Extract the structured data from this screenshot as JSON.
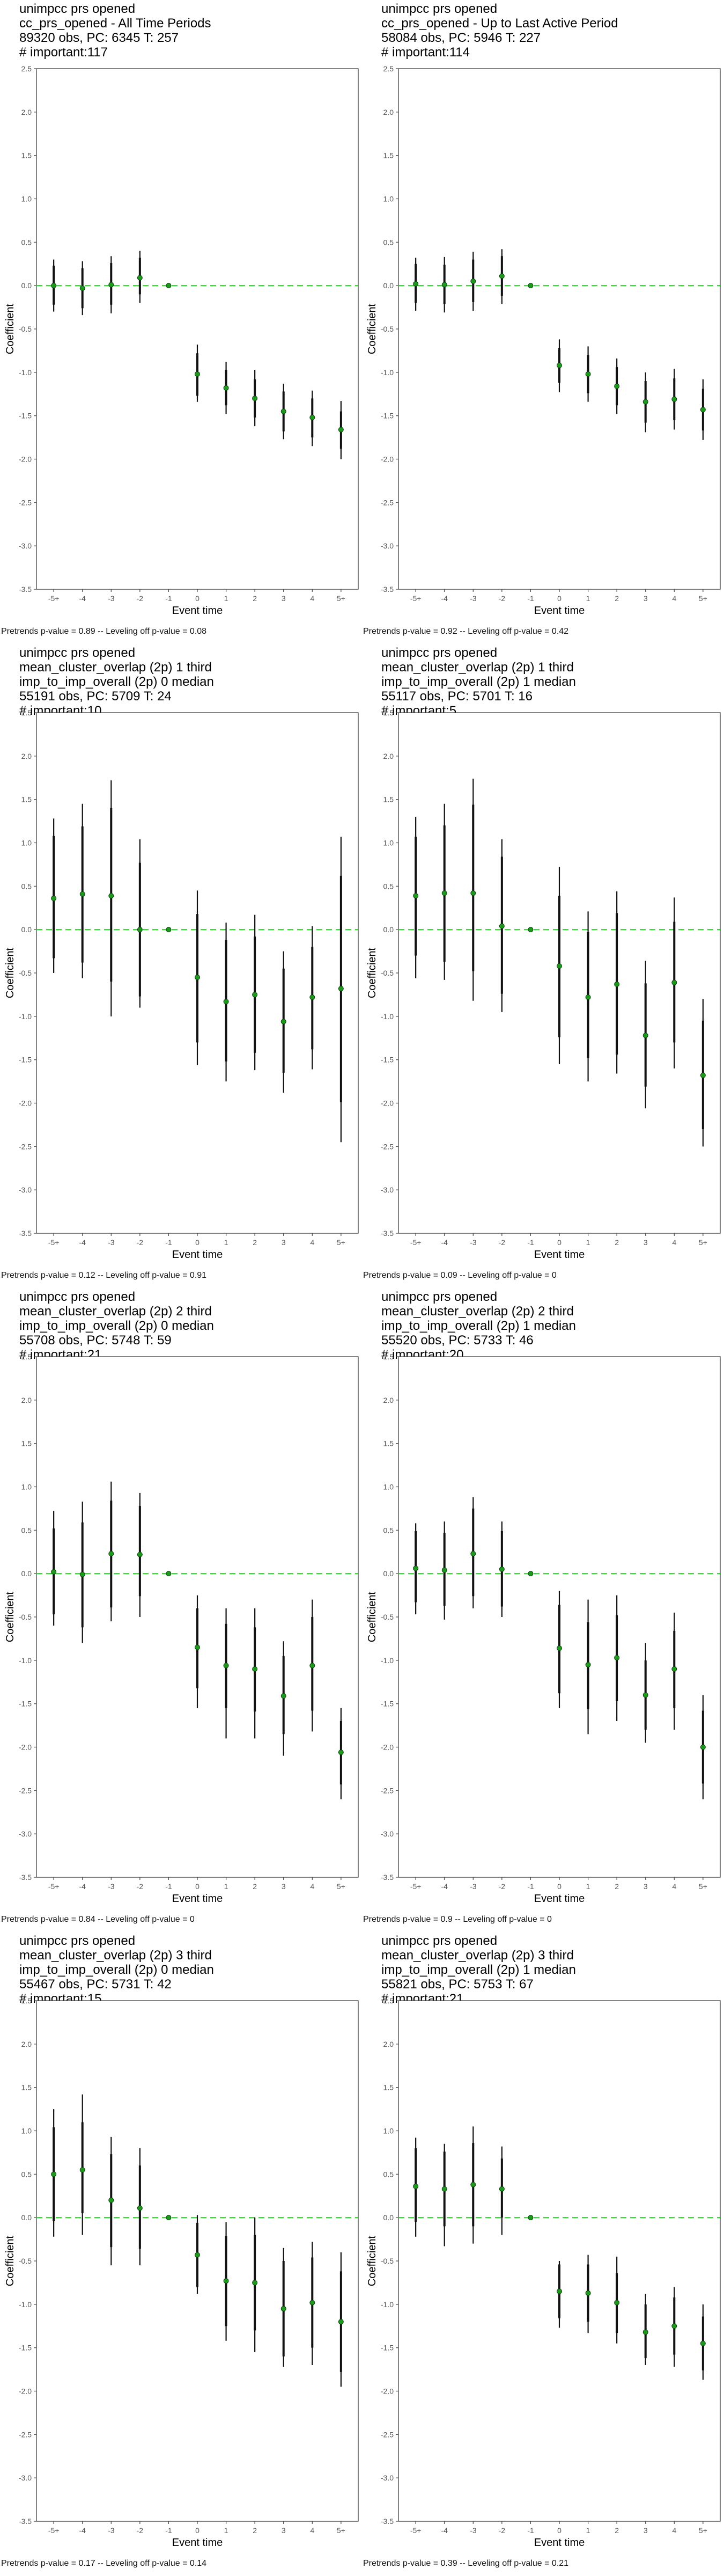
{
  "colors": {
    "zero_line": "#33e033",
    "point": "#1c9b1c",
    "error_bar": "#111111"
  },
  "chart_data": [
    {
      "type": "scatter",
      "title_lines": [
        "unimpcc prs opened",
        "cc_prs_opened - All Time Periods",
        "89320 obs, PC: 6345 T: 257",
        "# important:117"
      ],
      "xlabel": "Event time",
      "ylabel": "Coefficient",
      "categories": [
        "-5+",
        "-4",
        "-3",
        "-2",
        "-1",
        "0",
        "1",
        "2",
        "3",
        "4",
        "5+"
      ],
      "y_ticks": [
        "2.5",
        "2.0",
        "1.5",
        "1.0",
        "0.5",
        "0.0",
        "-0.5",
        "-1.0",
        "-1.5",
        "-2.0",
        "-2.5",
        "-3.0",
        "-3.5"
      ],
      "ylim": [
        -3.5,
        2.5
      ],
      "estimates": [
        0.0,
        -0.03,
        0.01,
        0.09,
        0.0,
        -1.02,
        -1.18,
        -1.3,
        -1.45,
        -1.52,
        -1.66
      ],
      "ci90": [
        [
          -0.22,
          0.23
        ],
        [
          -0.26,
          0.2
        ],
        [
          -0.22,
          0.26
        ],
        [
          -0.1,
          0.32
        ],
        null,
        [
          -1.27,
          -0.78
        ],
        [
          -1.38,
          -0.97
        ],
        [
          -1.52,
          -1.08
        ],
        [
          -1.68,
          -1.22
        ],
        [
          -1.75,
          -1.3
        ],
        [
          -1.88,
          -1.45
        ]
      ],
      "ci95": [
        [
          -0.3,
          0.3
        ],
        [
          -0.34,
          0.28
        ],
        [
          -0.32,
          0.34
        ],
        [
          -0.2,
          0.4
        ],
        null,
        [
          -1.34,
          -0.68
        ],
        [
          -1.48,
          -0.88
        ],
        [
          -1.62,
          -0.97
        ],
        [
          -1.77,
          -1.13
        ],
        [
          -1.85,
          -1.21
        ],
        [
          -2.0,
          -1.33
        ]
      ],
      "grid": false,
      "caption": "Pretrends p-value = 0.89 -- Leveling off p-value = 0.08"
    },
    {
      "type": "scatter",
      "title_lines": [
        "unimpcc prs opened",
        "cc_prs_opened - Up to Last Active Period",
        "58084 obs, PC: 5946 T: 227",
        "# important:114"
      ],
      "xlabel": "Event time",
      "ylabel": "Coefficient",
      "categories": [
        "-5+",
        "-4",
        "-3",
        "-2",
        "-1",
        "0",
        "1",
        "2",
        "3",
        "4",
        "5+"
      ],
      "y_ticks": [
        "2.5",
        "2.0",
        "1.5",
        "1.0",
        "0.5",
        "0.0",
        "-0.5",
        "-1.0",
        "-1.5",
        "-2.0",
        "-2.5",
        "-3.0",
        "-3.5"
      ],
      "ylim": [
        -3.5,
        2.5
      ],
      "estimates": [
        0.02,
        0.01,
        0.05,
        0.11,
        0.0,
        -0.92,
        -1.02,
        -1.16,
        -1.34,
        -1.31,
        -1.43
      ],
      "ci90": [
        [
          -0.2,
          0.25
        ],
        [
          -0.21,
          0.24
        ],
        [
          -0.19,
          0.3
        ],
        [
          -0.12,
          0.34
        ],
        null,
        [
          -1.12,
          -0.72
        ],
        [
          -1.24,
          -0.8
        ],
        [
          -1.38,
          -0.94
        ],
        [
          -1.58,
          -1.1
        ],
        [
          -1.55,
          -1.07
        ],
        [
          -1.67,
          -1.19
        ]
      ],
      "ci95": [
        [
          -0.29,
          0.32
        ],
        [
          -0.31,
          0.33
        ],
        [
          -0.29,
          0.39
        ],
        [
          -0.21,
          0.42
        ],
        null,
        [
          -1.23,
          -0.62
        ],
        [
          -1.34,
          -0.7
        ],
        [
          -1.48,
          -0.84
        ],
        [
          -1.69,
          -1.0
        ],
        [
          -1.66,
          -0.96
        ],
        [
          -1.78,
          -1.08
        ]
      ],
      "grid": false,
      "caption": "Pretrends p-value = 0.92 -- Leveling off p-value = 0.42"
    },
    {
      "type": "scatter",
      "title_lines": [
        "unimpcc prs opened",
        "mean_cluster_overlap (2p) 1 third",
        "imp_to_imp_overall (2p) 0 median",
        "55191 obs, PC: 5709 T: 24",
        "# important:10"
      ],
      "xlabel": "Event time",
      "ylabel": "Coefficient",
      "categories": [
        "-5+",
        "-4",
        "-3",
        "-2",
        "-1",
        "0",
        "1",
        "2",
        "3",
        "4",
        "5+"
      ],
      "y_ticks": [
        "2.5",
        "2.0",
        "1.5",
        "1.0",
        "0.5",
        "0.0",
        "-0.5",
        "-1.0",
        "-1.5",
        "-2.0",
        "-2.5",
        "-3.0",
        "-3.5"
      ],
      "ylim": [
        -3.5,
        2.5
      ],
      "estimates": [
        0.36,
        0.41,
        0.39,
        0.0,
        0.0,
        -0.55,
        -0.83,
        -0.75,
        -1.06,
        -0.78,
        -0.68
      ],
      "ci90": [
        [
          -0.33,
          1.08
        ],
        [
          -0.38,
          1.19
        ],
        [
          -0.6,
          1.4
        ],
        [
          -0.77,
          0.77
        ],
        null,
        [
          -1.3,
          0.18
        ],
        [
          -1.52,
          -0.12
        ],
        [
          -1.42,
          -0.08
        ],
        [
          -1.65,
          -0.45
        ],
        [
          -1.38,
          -0.2
        ],
        [
          -1.99,
          0.62
        ]
      ],
      "ci95": [
        [
          -0.5,
          1.28
        ],
        [
          -0.56,
          1.45
        ],
        [
          -1.0,
          1.72
        ],
        [
          -0.9,
          1.04
        ],
        null,
        [
          -1.56,
          0.45
        ],
        [
          -1.75,
          0.08
        ],
        [
          -1.62,
          0.17
        ],
        [
          -1.88,
          -0.25
        ],
        [
          -1.61,
          0.04
        ],
        [
          -2.45,
          1.07
        ]
      ],
      "grid": false,
      "caption": "Pretrends p-value = 0.12 -- Leveling off p-value = 0.91"
    },
    {
      "type": "scatter",
      "title_lines": [
        "unimpcc prs opened",
        "mean_cluster_overlap (2p) 1 third",
        "imp_to_imp_overall (2p) 1 median",
        "55117 obs, PC: 5701 T: 16",
        "# important:5"
      ],
      "xlabel": "Event time",
      "ylabel": "Coefficient",
      "categories": [
        "-5+",
        "-4",
        "-3",
        "-2",
        "-1",
        "0",
        "1",
        "2",
        "3",
        "4",
        "5+"
      ],
      "y_ticks": [
        "2.5",
        "2.0",
        "1.5",
        "1.0",
        "0.5",
        "0.0",
        "-0.5",
        "-1.0",
        "-1.5",
        "-2.0",
        "-2.5",
        "-3.0",
        "-3.5"
      ],
      "ylim": [
        -3.5,
        2.5
      ],
      "estimates": [
        0.39,
        0.42,
        0.42,
        0.04,
        0.0,
        -0.42,
        -0.78,
        -0.63,
        -1.22,
        -0.61,
        -1.68
      ],
      "ci90": [
        [
          -0.3,
          1.07
        ],
        [
          -0.37,
          1.2
        ],
        [
          -0.48,
          1.44
        ],
        [
          -0.74,
          0.84
        ],
        null,
        [
          -1.24,
          0.39
        ],
        [
          -1.48,
          -0.03
        ],
        [
          -1.44,
          0.19
        ],
        [
          -1.81,
          -0.62
        ],
        [
          -1.3,
          0.09
        ],
        [
          -2.3,
          -1.05
        ]
      ],
      "ci95": [
        [
          -0.56,
          1.3
        ],
        [
          -0.58,
          1.45
        ],
        [
          -0.82,
          1.74
        ],
        [
          -0.95,
          1.04
        ],
        null,
        [
          -1.55,
          0.72
        ],
        [
          -1.75,
          0.21
        ],
        [
          -1.66,
          0.44
        ],
        [
          -2.06,
          -0.36
        ],
        [
          -1.6,
          0.37
        ],
        [
          -2.5,
          -0.8
        ]
      ],
      "grid": false,
      "caption": "Pretrends p-value = 0.09 -- Leveling off p-value = 0"
    },
    {
      "type": "scatter",
      "title_lines": [
        "unimpcc prs opened",
        "mean_cluster_overlap (2p) 2 third",
        "imp_to_imp_overall (2p) 0 median",
        "55708 obs, PC: 5748 T: 59",
        "# important:21"
      ],
      "xlabel": "Event time",
      "ylabel": "Coefficient",
      "categories": [
        "-5+",
        "-4",
        "-3",
        "-2",
        "-1",
        "0",
        "1",
        "2",
        "3",
        "4",
        "5+"
      ],
      "y_ticks": [
        "2.5",
        "2.0",
        "1.5",
        "1.0",
        "0.5",
        "0.0",
        "-0.5",
        "-1.0",
        "-1.5",
        "-2.0",
        "-2.5",
        "-3.0",
        "-3.5"
      ],
      "ylim": [
        -3.5,
        2.5
      ],
      "estimates": [
        0.02,
        -0.01,
        0.23,
        0.22,
        0.0,
        -0.85,
        -1.06,
        -1.1,
        -1.41,
        -1.06,
        -2.06
      ],
      "ci90": [
        [
          -0.47,
          0.52
        ],
        [
          -0.62,
          0.59
        ],
        [
          -0.39,
          0.84
        ],
        [
          -0.26,
          0.78
        ],
        null,
        [
          -1.32,
          -0.4
        ],
        [
          -1.55,
          -0.58
        ],
        [
          -1.59,
          -0.62
        ],
        [
          -1.85,
          -0.95
        ],
        [
          -1.58,
          -0.5
        ],
        [
          -2.43,
          -1.7
        ]
      ],
      "ci95": [
        [
          -0.6,
          0.72
        ],
        [
          -0.8,
          0.83
        ],
        [
          -0.55,
          1.06
        ],
        [
          -0.5,
          0.93
        ],
        null,
        [
          -1.55,
          -0.25
        ],
        [
          -1.9,
          -0.4
        ],
        [
          -1.9,
          -0.4
        ],
        [
          -2.1,
          -0.78
        ],
        [
          -1.82,
          -0.3
        ],
        [
          -2.6,
          -1.55
        ]
      ],
      "grid": false,
      "caption": "Pretrends p-value = 0.84 -- Leveling off p-value = 0"
    },
    {
      "type": "scatter",
      "title_lines": [
        "unimpcc prs opened",
        "mean_cluster_overlap (2p) 2 third",
        "imp_to_imp_overall (2p) 1 median",
        "55520 obs, PC: 5733 T: 46",
        "# important:20"
      ],
      "xlabel": "Event time",
      "ylabel": "Coefficient",
      "categories": [
        "-5+",
        "-4",
        "-3",
        "-2",
        "-1",
        "0",
        "1",
        "2",
        "3",
        "4",
        "5+"
      ],
      "y_ticks": [
        "2.5",
        "2.0",
        "1.5",
        "1.0",
        "0.5",
        "0.0",
        "-0.5",
        "-1.0",
        "-1.5",
        "-2.0",
        "-2.5",
        "-3.0",
        "-3.5"
      ],
      "ylim": [
        -3.5,
        2.5
      ],
      "estimates": [
        0.06,
        0.04,
        0.23,
        0.05,
        0.0,
        -0.86,
        -1.05,
        -0.97,
        -1.4,
        -1.1,
        -2.0
      ],
      "ci90": [
        [
          -0.33,
          0.49
        ],
        [
          -0.37,
          0.47
        ],
        [
          -0.26,
          0.75
        ],
        [
          -0.38,
          0.49
        ],
        null,
        [
          -1.38,
          -0.36
        ],
        [
          -1.56,
          -0.56
        ],
        [
          -1.47,
          -0.48
        ],
        [
          -1.8,
          -1.0
        ],
        [
          -1.55,
          -0.66
        ],
        [
          -2.42,
          -1.58
        ]
      ],
      "ci95": [
        [
          -0.47,
          0.58
        ],
        [
          -0.53,
          0.6
        ],
        [
          -0.4,
          0.88
        ],
        [
          -0.5,
          0.6
        ],
        null,
        [
          -1.55,
          -0.2
        ],
        [
          -1.85,
          -0.3
        ],
        [
          -1.7,
          -0.25
        ],
        [
          -1.95,
          -0.8
        ],
        [
          -1.8,
          -0.45
        ],
        [
          -2.6,
          -1.4
        ]
      ],
      "grid": false,
      "caption": "Pretrends p-value = 0.9 -- Leveling off p-value = 0"
    },
    {
      "type": "scatter",
      "title_lines": [
        "unimpcc prs opened",
        "mean_cluster_overlap (2p) 3 third",
        "imp_to_imp_overall (2p) 0 median",
        "55467 obs, PC: 5731 T: 42",
        "# important:15"
      ],
      "xlabel": "Event time",
      "ylabel": "Coefficient",
      "categories": [
        "-5+",
        "-4",
        "-3",
        "-2",
        "-1",
        "0",
        "1",
        "2",
        "3",
        "4",
        "5+"
      ],
      "y_ticks": [
        "2.5",
        "2.0",
        "1.5",
        "1.0",
        "0.5",
        "0.0",
        "-0.5",
        "-1.0",
        "-1.5",
        "-2.0",
        "-2.5",
        "-3.0",
        "-3.5"
      ],
      "ylim": [
        -3.5,
        2.5
      ],
      "estimates": [
        0.5,
        0.55,
        0.2,
        0.11,
        0.0,
        -0.43,
        -0.73,
        -0.75,
        -1.05,
        -0.98,
        -1.2
      ],
      "ci90": [
        [
          -0.04,
          1.04
        ],
        [
          0.05,
          1.1
        ],
        [
          -0.34,
          0.73
        ],
        [
          -0.36,
          0.6
        ],
        null,
        [
          -0.8,
          -0.06
        ],
        [
          -1.25,
          -0.21
        ],
        [
          -1.3,
          -0.2
        ],
        [
          -1.6,
          -0.5
        ],
        [
          -1.5,
          -0.46
        ],
        [
          -1.78,
          -0.62
        ]
      ],
      "ci95": [
        [
          -0.22,
          1.25
        ],
        [
          -0.2,
          1.42
        ],
        [
          -0.55,
          0.93
        ],
        [
          -0.55,
          0.8
        ],
        null,
        [
          -0.88,
          0.03
        ],
        [
          -1.42,
          -0.05
        ],
        [
          -1.55,
          0.0
        ],
        [
          -1.72,
          -0.35
        ],
        [
          -1.7,
          -0.28
        ],
        [
          -1.95,
          -0.4
        ]
      ],
      "grid": false,
      "caption": "Pretrends p-value = 0.17 -- Leveling off p-value = 0.14"
    },
    {
      "type": "scatter",
      "title_lines": [
        "unimpcc prs opened",
        "mean_cluster_overlap (2p) 3 third",
        "imp_to_imp_overall (2p) 1 median",
        "55821 obs, PC: 5753 T: 67",
        "# important:21"
      ],
      "xlabel": "Event time",
      "ylabel": "Coefficient",
      "categories": [
        "-5+",
        "-4",
        "-3",
        "-2",
        "-1",
        "0",
        "1",
        "2",
        "3",
        "4",
        "5+"
      ],
      "y_ticks": [
        "2.5",
        "2.0",
        "1.5",
        "1.0",
        "0.5",
        "0.0",
        "-0.5",
        "-1.0",
        "-1.5",
        "-2.0",
        "-2.5",
        "-3.0",
        "-3.5"
      ],
      "ylim": [
        -3.5,
        2.5
      ],
      "estimates": [
        0.36,
        0.33,
        0.38,
        0.33,
        0.0,
        -0.85,
        -0.87,
        -0.98,
        -1.32,
        -1.25,
        -1.45
      ],
      "ci90": [
        [
          -0.05,
          0.8
        ],
        [
          -0.1,
          0.76
        ],
        [
          -0.1,
          0.86
        ],
        [
          0.0,
          0.68
        ],
        null,
        [
          -1.16,
          -0.54
        ],
        [
          -1.2,
          -0.54
        ],
        [
          -1.33,
          -0.64
        ],
        [
          -1.62,
          -1.0
        ],
        [
          -1.58,
          -0.92
        ],
        [
          -1.76,
          -1.14
        ]
      ],
      "ci95": [
        [
          -0.22,
          0.92
        ],
        [
          -0.33,
          0.85
        ],
        [
          -0.3,
          1.05
        ],
        [
          -0.2,
          0.82
        ],
        null,
        [
          -1.27,
          -0.5
        ],
        [
          -1.33,
          -0.43
        ],
        [
          -1.45,
          -0.45
        ],
        [
          -1.7,
          -0.88
        ],
        [
          -1.72,
          -0.8
        ],
        [
          -1.87,
          -1.0
        ]
      ],
      "grid": false,
      "caption": "Pretrends p-value = 0.39 -- Leveling off p-value = 0.21"
    }
  ]
}
